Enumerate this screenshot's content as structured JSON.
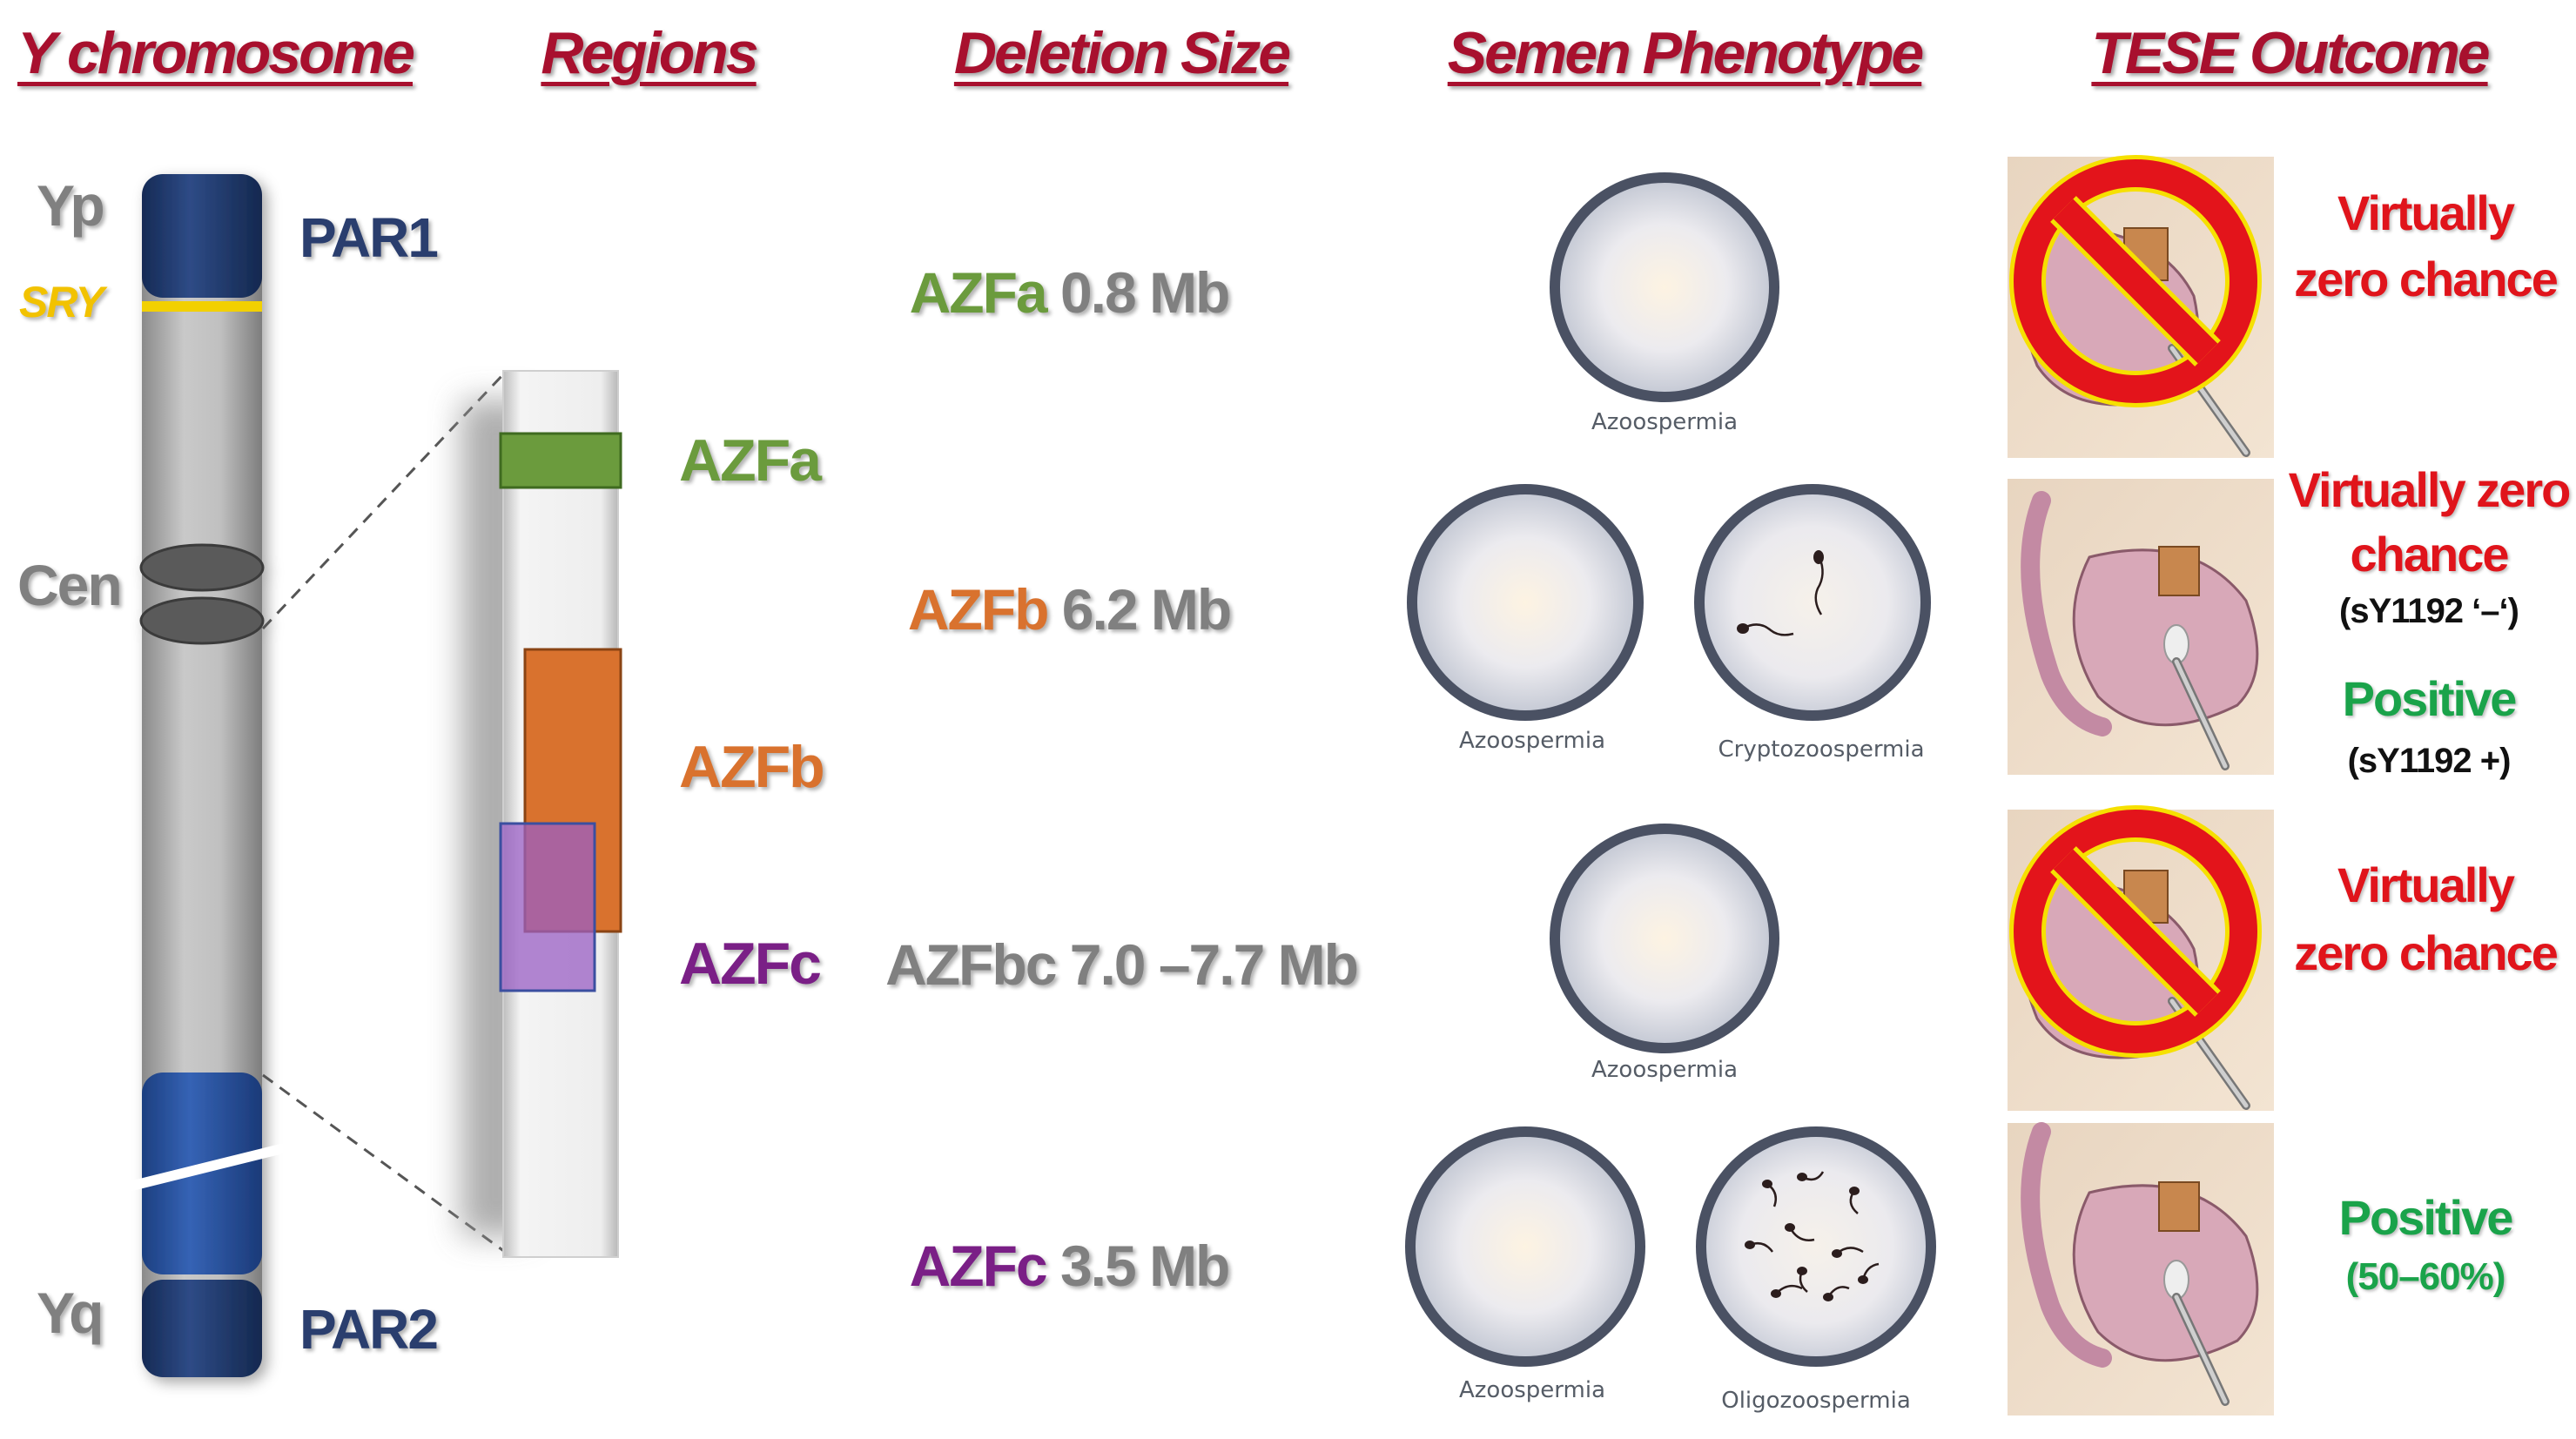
{
  "headers": {
    "y_chromosome": "Y chromosome",
    "regions": "Regions",
    "deletion_size": "Deletion Size",
    "semen_phenotype": "Semen Phenotype",
    "tese_outcome": "TESE Outcome"
  },
  "chromosome": {
    "yp": "Yp",
    "sry": "SRY",
    "cen": "Cen",
    "yq": "Yq",
    "par1": "PAR1",
    "par2": "PAR2"
  },
  "regions": {
    "azfa": "AZFa",
    "azfb": "AZFb",
    "azfc": "AZFc"
  },
  "deletions": [
    {
      "region": "AZFa",
      "size": "0.8 Mb"
    },
    {
      "region": "AZFb",
      "size": "6.2 Mb"
    },
    {
      "region": "AZFbc",
      "size": "7.0 –7.7 Mb"
    },
    {
      "region": "AZFc",
      "size": "3.5 Mb"
    }
  ],
  "phenotypes": {
    "row1": [
      "Azoospermia"
    ],
    "row2": [
      "Azoospermia",
      "Cryptozoospermia"
    ],
    "row3": [
      "Azoospermia"
    ],
    "row4": [
      "Azoospermia",
      "Oligozoospermia"
    ]
  },
  "outcomes": {
    "row1": [
      "Virtually",
      "zero chance"
    ],
    "row2": [
      "Virtually zero",
      "chance",
      "(sY1192 ‘–‘)",
      "Positive",
      "(sY1192 +)"
    ],
    "row3": [
      "Virtually",
      "zero chance"
    ],
    "row4": [
      "Positive",
      "(50–60%)"
    ]
  },
  "colors": {
    "header": "#a8102e",
    "azfa": "#6b9b3d",
    "azfb": "#d9722e",
    "azfc": "#7a1f86",
    "par": "#2a3e6e",
    "sry": "#f2c200",
    "negative": "#e0141b",
    "positive": "#1aa34a"
  }
}
